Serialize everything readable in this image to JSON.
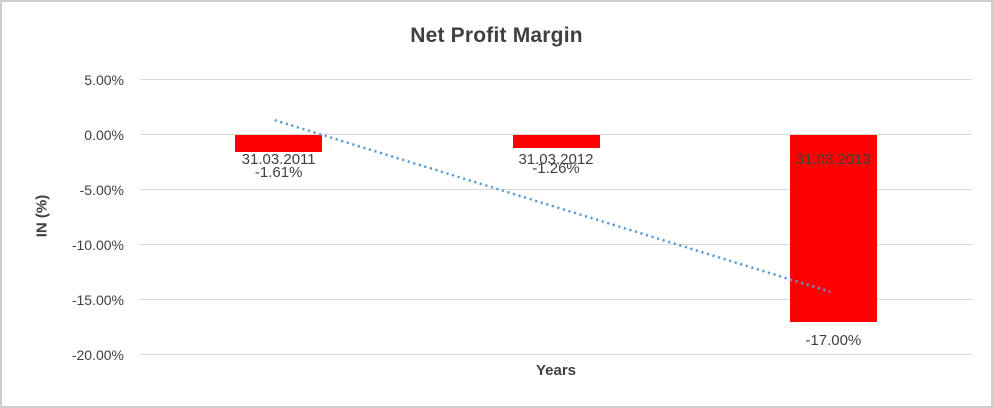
{
  "frame": {
    "background": "#ffffff",
    "border_color": "#cfcfcf"
  },
  "chart_data": {
    "type": "bar",
    "title": "Net Profit Margin",
    "xlabel": "Years",
    "ylabel": "IN (%)",
    "categories": [
      "31.03.2011",
      "31.03.2012",
      "31.03.2013"
    ],
    "series": [
      {
        "name": "Net Profit Margin",
        "values": [
          -1.61,
          -1.26,
          -17.0
        ]
      }
    ],
    "data_labels": [
      "-1.61%",
      "-1.26%",
      "-17.00%"
    ],
    "bar_color": "#ff0000",
    "label_color": "#404040",
    "grid": true,
    "gridline_color": "#d9d9d9",
    "legend": "none",
    "ylim": [
      -20,
      5
    ],
    "yticks": [
      {
        "value": 5,
        "label": "5.00%"
      },
      {
        "value": 0,
        "label": "0.00%"
      },
      {
        "value": -5,
        "label": "-5.00%"
      },
      {
        "value": -10,
        "label": "-10.00%"
      },
      {
        "value": -15,
        "label": "-15.00%"
      },
      {
        "value": -20,
        "label": "-20.00%"
      }
    ],
    "trendline": {
      "type": "linear",
      "style": "dotted",
      "color": "#5b9bd5",
      "start_value": 1.3,
      "end_value": -14.3
    }
  }
}
